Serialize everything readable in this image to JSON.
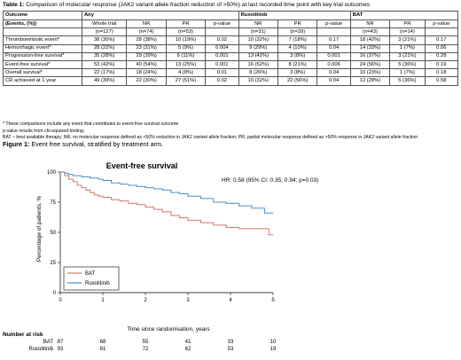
{
  "table": {
    "caption_bold": "Table 1:",
    "caption_text": " Comparison of molecular response (JAK2 variant allele fraction reduction of >50%) at last recorded time point with key trial outcomes",
    "group_headers": [
      "Any",
      "Ruxolitinib",
      "BAT"
    ],
    "outcome_header": "Outcome",
    "events_header": "(Events, (%))",
    "subheaders": [
      "Whole trial",
      "NR",
      "PR",
      "p-value",
      "NR",
      "PR",
      "p-value",
      "NR",
      "PR",
      "p-value"
    ],
    "n_row": [
      "(n=127)",
      "(n=74)",
      "(n=53)",
      "",
      "(n=31)",
      "(n=39)",
      "",
      "(n=43)",
      "(n=14)",
      ""
    ],
    "rows": [
      {
        "label": "Thromboembolic event*",
        "cells": [
          "38 (30%)",
          "28 (38%)",
          "10 (19%)",
          "0.02",
          "10 (32%)",
          "7 (18%)",
          "0.17",
          "18 (42%)",
          "3 (21%)",
          "0.17"
        ]
      },
      {
        "label": "Hemorrhagic event*",
        "cells": [
          "28 (22%)",
          "23 (31%)",
          "5 (9%)",
          "0.004",
          "9 (29%)",
          "4 (10%)",
          "0.04",
          "14 (33%)",
          "1 (7%)",
          "0.06"
        ]
      },
      {
        "label": "Progression-free survival*",
        "cells": [
          "35 (28%)",
          "29 (39%)",
          "6 (11%)",
          "0.001",
          "13 (42%)",
          "3 (8%)",
          "0.001",
          "16 (37%)",
          "3 (21%)",
          "0.28"
        ]
      },
      {
        "label": "Event-free survival*",
        "cells": [
          "53 (42%)",
          "40 (54%)",
          "13 (25%)",
          "0.001",
          "16 (52%)",
          "8 (21%)",
          "0.006",
          "24 (56%)",
          "5 (36%)",
          "0.19"
        ]
      },
      {
        "label": "Overall survival*",
        "cells": [
          "22 (17%)",
          "18 (24%)",
          "4 (8%)",
          "0.01",
          "8 (26%)",
          "3 (8%)",
          "0.04",
          "10 (23%)",
          "1 (7%)",
          "0.18"
        ]
      },
      {
        "label": "CR achieved at 1 year",
        "cells": [
          "49 (39%)",
          "22 (30%)",
          "27 (51%)",
          "0.02",
          "10 (32%)",
          "22 (56%)",
          "0.04",
          "12 (28%)",
          "5 (36%)",
          "0.58"
        ]
      }
    ]
  },
  "notes": {
    "footnote": "* These comparisons include any event that contributes to event-free survival outcome",
    "pvalue_note": "p-value results from chi-squared testing;",
    "abbrev_note": "BAT – best available therapy; NR, no molecular response defined as <50% reduction in JAK2 variant allele fraction; PR, partial molecular response defined as >50% response in JAK2 variant allele fraction"
  },
  "figure": {
    "caption_bold": "Figure 1:",
    "caption_text": " Event free survival, stratified by treatment arm."
  },
  "chart_data": {
    "type": "line",
    "title": "Event-free survival",
    "annotation": "HR: 0.58 (95% CI: 0.35, 0.94; p=0.03)",
    "xlabel": "Time since randomisation, years",
    "ylabel": "Percentage of patients, %",
    "xlim": [
      0,
      5
    ],
    "ylim": [
      0,
      100
    ],
    "xticks": [
      0,
      1,
      2,
      3,
      4,
      5
    ],
    "yticks": [
      0,
      25,
      50,
      75,
      100
    ],
    "grid": false,
    "legend_position": "bottom-left",
    "series": [
      {
        "name": "BAT",
        "color": "#d9756a",
        "x": [
          0,
          0.1,
          0.2,
          0.3,
          0.4,
          0.5,
          0.6,
          0.7,
          0.8,
          0.9,
          1.0,
          1.2,
          1.4,
          1.6,
          1.8,
          2.0,
          2.2,
          2.4,
          2.6,
          2.8,
          3.0,
          3.3,
          3.6,
          3.9,
          4.2,
          4.5,
          4.8,
          4.9,
          5.0
        ],
        "y": [
          100,
          97,
          94,
          92,
          89,
          87,
          85,
          83,
          81,
          80,
          79,
          77,
          76,
          74,
          73,
          71,
          69,
          67,
          64,
          62,
          60,
          58,
          56,
          54,
          53,
          53,
          53,
          48,
          48
        ]
      },
      {
        "name": "Ruxolitinib",
        "color": "#4a90c8",
        "x": [
          0,
          0.1,
          0.2,
          0.3,
          0.5,
          0.7,
          0.9,
          1.0,
          1.2,
          1.4,
          1.6,
          1.8,
          2.0,
          2.2,
          2.4,
          2.6,
          2.8,
          3.0,
          3.3,
          3.6,
          3.9,
          4.2,
          4.5,
          4.7,
          4.8,
          5.0
        ],
        "y": [
          100,
          99,
          98,
          97,
          96,
          95,
          94,
          93,
          91,
          90,
          89,
          88,
          87,
          86,
          85,
          83,
          82,
          80,
          78,
          75,
          74,
          72,
          70,
          70,
          66,
          66
        ]
      }
    ],
    "at_risk": {
      "heading": "Number at risk",
      "rows": [
        {
          "label": "BAT",
          "values": [
            87,
            68,
            55,
            41,
            33,
            10
          ]
        },
        {
          "label": "Ruxolitinib",
          "values": [
            93,
            81,
            72,
            62,
            53,
            19
          ]
        }
      ]
    }
  }
}
